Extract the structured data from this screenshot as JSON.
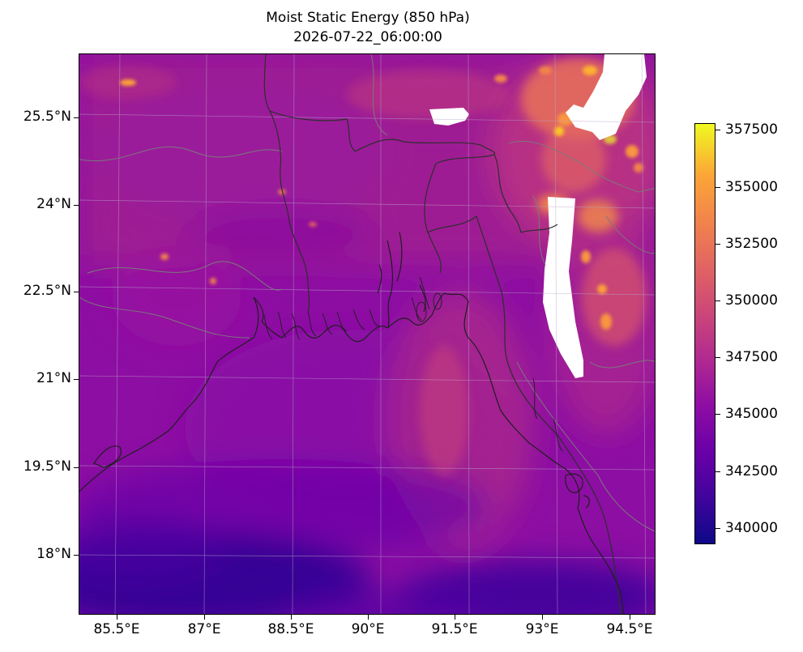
{
  "title": "Moist Static Energy (850 hPa)",
  "subtitle": "2026-07-22_06:00:00",
  "lat_labels": [
    "25.5°N",
    "24°N",
    "22.5°N",
    "21°N",
    "19.5°N",
    "18°N"
  ],
  "lon_labels": [
    "85.5°E",
    "87°E",
    "88.5°E",
    "90°E",
    "91.5°E",
    "93°E",
    "94.5°E"
  ],
  "colorbar": {
    "colormap": "plasma",
    "ticks": [
      "357500",
      "355000",
      "352500",
      "350000",
      "347500",
      "345000",
      "342500",
      "340000"
    ],
    "min": 339400,
    "max": 357800
  },
  "colors": {
    "coastline": "#222222",
    "borders": "#7a7a7a",
    "gridlines": "#b9a8c9",
    "missing_data": "#ffffff"
  },
  "chart_data": {
    "type": "heatmap",
    "title": "Moist Static Energy (850 hPa)",
    "subtitle": "2026-07-22_06:00:00",
    "x_range": [
      84.85,
      94.85
    ],
    "y_range": [
      16.95,
      26.65
    ],
    "x_ticks": [
      85.5,
      87,
      88.5,
      90,
      91.5,
      93,
      94.5
    ],
    "y_ticks": [
      25.5,
      24,
      22.5,
      21,
      19.5,
      18
    ],
    "colorbar_range": [
      339400,
      357800
    ],
    "grid": true
  }
}
